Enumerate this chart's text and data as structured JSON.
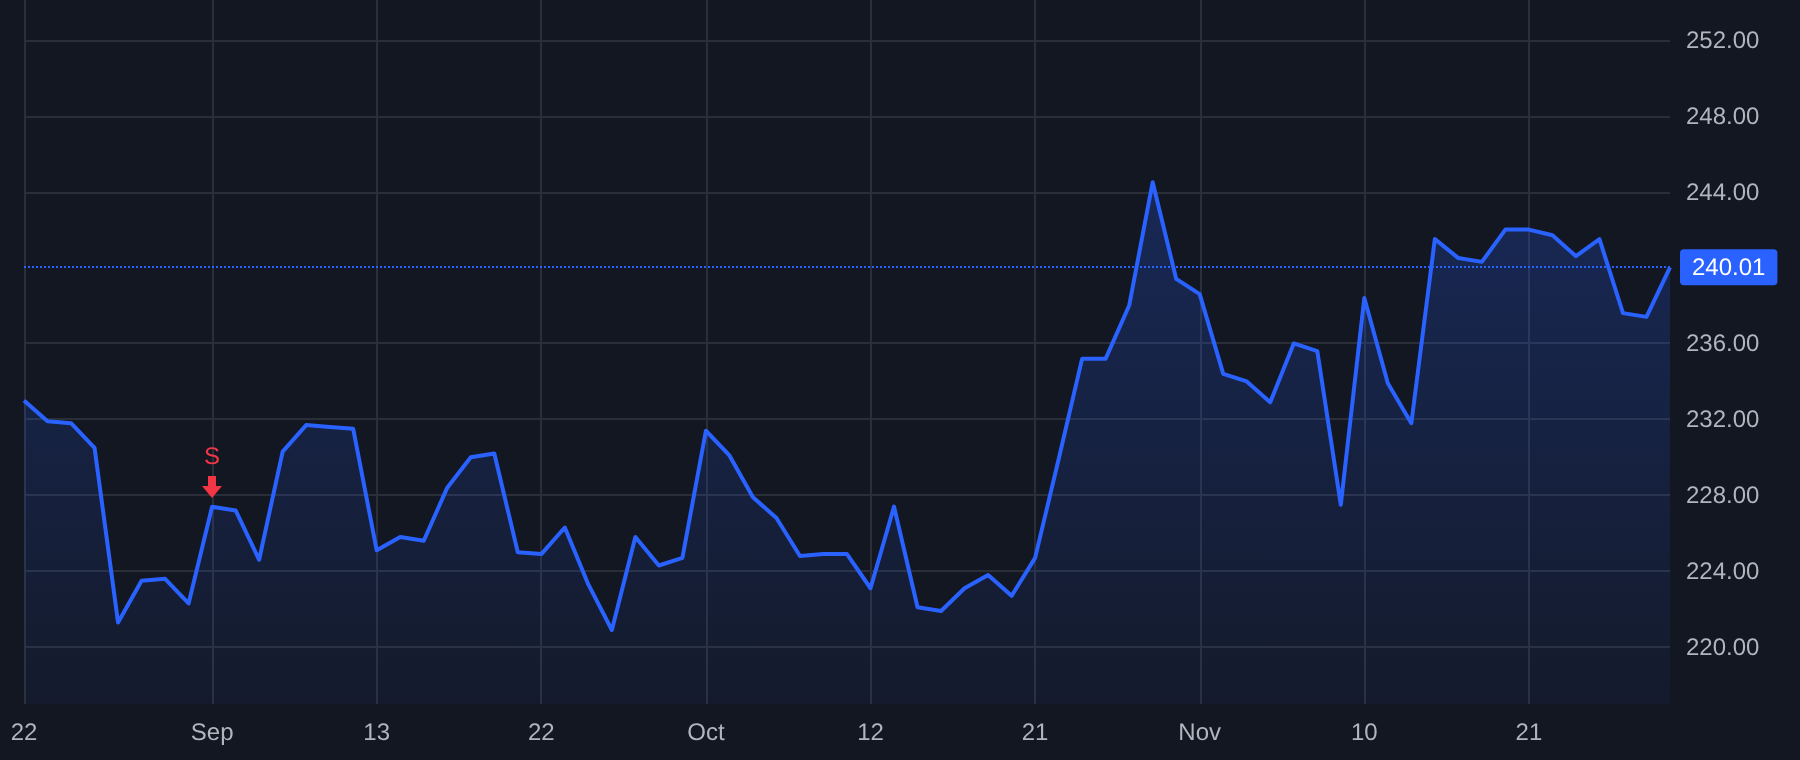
{
  "chart_data": {
    "type": "area",
    "categories": [
      "22",
      null,
      null,
      null,
      null,
      null,
      null,
      null,
      "Sep",
      null,
      null,
      null,
      null,
      null,
      null,
      "13",
      null,
      null,
      null,
      null,
      null,
      null,
      "22",
      null,
      null,
      null,
      null,
      null,
      null,
      "Oct",
      null,
      null,
      null,
      null,
      null,
      null,
      "12",
      null,
      null,
      null,
      null,
      null,
      null,
      "21",
      null,
      null,
      null,
      null,
      null,
      null,
      "Nov",
      null,
      null,
      null,
      null,
      null,
      null,
      "10",
      null,
      null,
      null,
      null,
      null,
      null,
      "21",
      null,
      null,
      null,
      null,
      null,
      null
    ],
    "series": [
      {
        "color": "#2962ff",
        "values": [
          233.0,
          231.9,
          231.8,
          230.5,
          221.3,
          223.5,
          223.6,
          222.3,
          227.4,
          227.2,
          224.6,
          230.3,
          231.7,
          231.6,
          231.5,
          225.1,
          225.8,
          225.6,
          228.4,
          230.0,
          230.2,
          225.0,
          224.9,
          226.3,
          223.3,
          220.9,
          225.8,
          224.3,
          224.7,
          231.4,
          230.1,
          227.9,
          226.8,
          224.8,
          224.9,
          224.9,
          223.1,
          227.4,
          222.1,
          221.9,
          223.1,
          223.8,
          222.7,
          224.7,
          229.9,
          235.2,
          235.2,
          238.0,
          244.5,
          239.4,
          238.6,
          234.4,
          234.0,
          232.9,
          236.0,
          235.6,
          227.5,
          238.4,
          233.9,
          231.8,
          241.5,
          240.5,
          240.3,
          242.0,
          242.0,
          241.7,
          240.6,
          241.5,
          237.6,
          237.4,
          240.01
        ]
      }
    ],
    "ylim": [
      217,
      254.1
    ],
    "yticks": [
      {
        "value": 220,
        "label": "220.00"
      },
      {
        "value": 224,
        "label": "224.00"
      },
      {
        "value": 228,
        "label": "228.00"
      },
      {
        "value": 232,
        "label": "232.00"
      },
      {
        "value": 236,
        "label": "236.00"
      },
      {
        "value": 244,
        "label": "244.00"
      },
      {
        "value": 248,
        "label": "248.00"
      },
      {
        "value": 252,
        "label": "252.00"
      }
    ],
    "ref_lines": [
      {
        "axis": "y",
        "value": 240.01,
        "label": "240.01",
        "color": "#2962ff",
        "line_style": "dotted"
      }
    ],
    "annotations": [
      {
        "text": "S",
        "x": "Sep",
        "y": 227.4
      }
    ],
    "grid": true,
    "marker": "none",
    "line_style": "solid"
  }
}
